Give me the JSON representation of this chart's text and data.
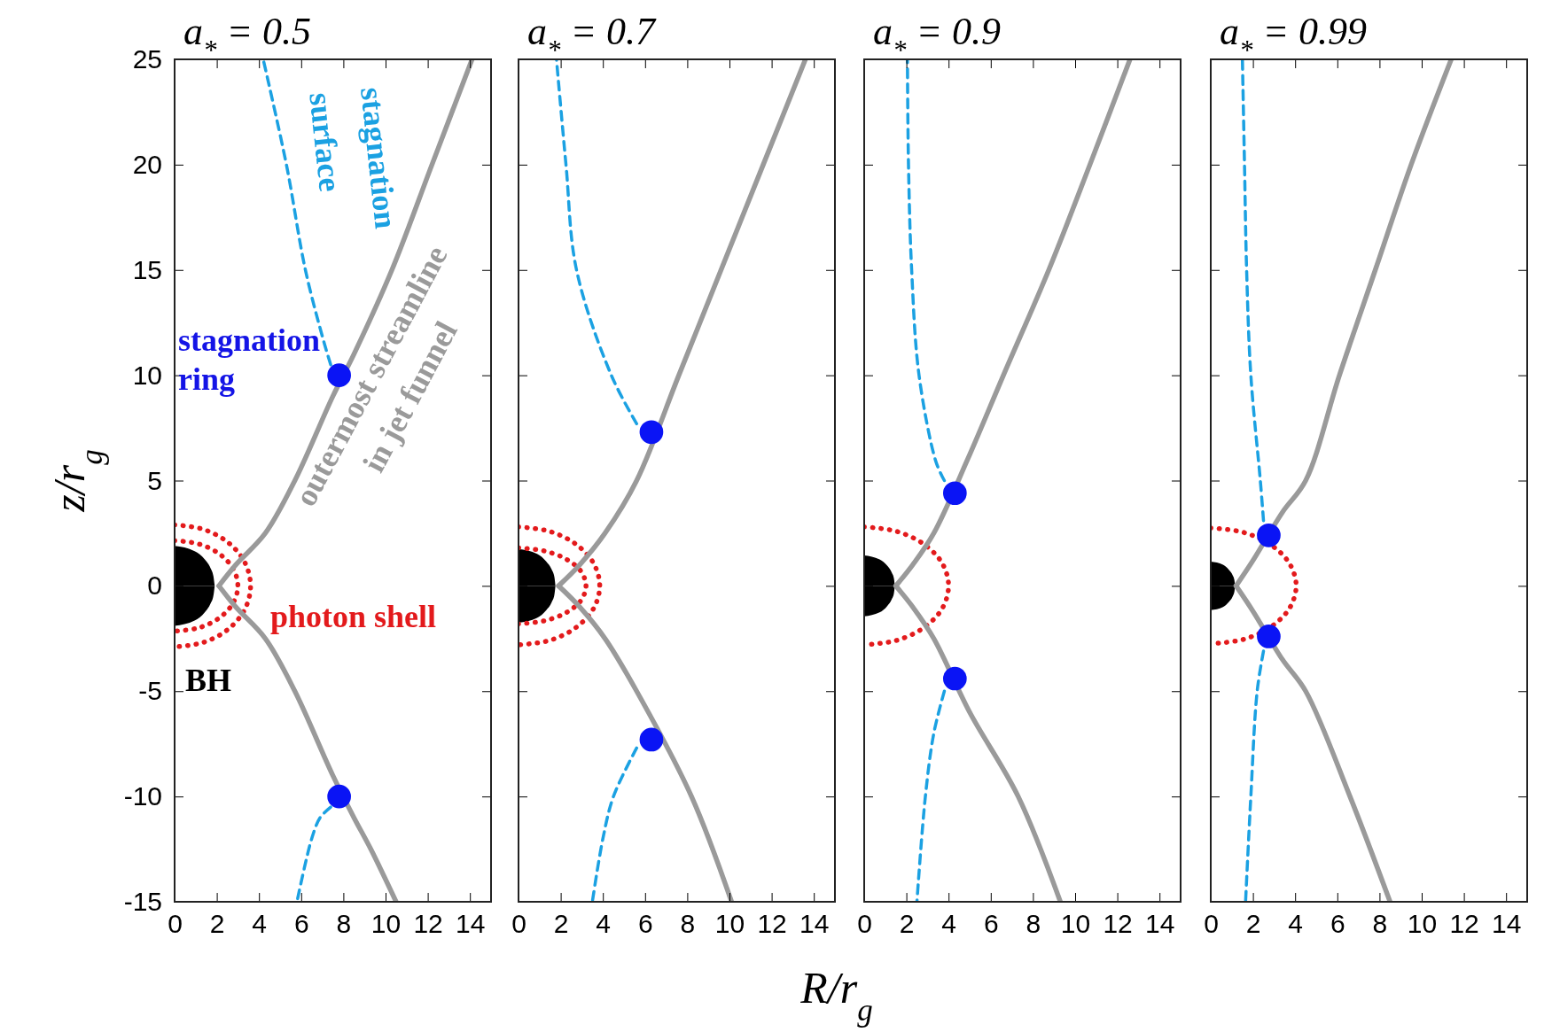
{
  "chart_data": [
    {
      "type": "line",
      "title": "a$_{*}$ = 0.5",
      "ylabel": "z/r$_{g}$",
      "xlim": [
        0,
        15
      ],
      "ylim": [
        -15,
        25
      ],
      "xticks": [
        0,
        2,
        4,
        6,
        8,
        10,
        12,
        14
      ],
      "yticks": [
        -15,
        -10,
        -5,
        0,
        5,
        10,
        15,
        20,
        25
      ],
      "annotations": [
        "stagnation surface",
        "stagnation ring",
        "outermost streamline in jet funnel",
        "photon shell",
        "BH"
      ],
      "series": [
        {
          "type": "area",
          "color": "#000000",
          "x": [
            0,
            0.95,
            1.43,
            1.71,
            1.84,
            1.9
          ],
          "values": [
            1.9,
            1.65,
            1.26,
            0.83,
            0.46,
            0
          ]
        },
        {
          "type": "area",
          "color": "#000000",
          "x": [
            0,
            0.95,
            1.43,
            1.71,
            1.84,
            1.9
          ],
          "values": [
            -1.9,
            -1.65,
            -1.26,
            -0.83,
            -0.46,
            0
          ]
        },
        {
          "type": "line",
          "color": "#e31a1c",
          "line_style": "dotted",
          "x": [
            0,
            1.38,
            2.55,
            3.33,
            3.6,
            3.33,
            2.55,
            1.38,
            0
          ],
          "values": [
            2.9,
            2.68,
            2.05,
            1.11,
            0,
            -1.11,
            -2.05,
            -2.68,
            -2.9
          ]
        },
        {
          "type": "line",
          "color": "#e31a1c",
          "line_style": "dotted",
          "x": [
            0,
            1.15,
            2.12,
            2.77,
            3.0,
            2.77,
            2.12,
            1.15,
            0
          ],
          "values": [
            2.15,
            1.99,
            1.52,
            0.82,
            0,
            -0.82,
            -1.52,
            -1.99,
            -2.15
          ]
        },
        {
          "type": "line",
          "color": "#9a9a9a",
          "line_style": "solid",
          "x": [
            2.1,
            2.9,
            4.3,
            5.7,
            7.5,
            8.5,
            10.3,
            12.2,
            14.1
          ],
          "values": [
            0,
            1,
            2.5,
            5,
            9,
            11,
            15,
            20,
            25
          ]
        },
        {
          "type": "line",
          "color": "#9a9a9a",
          "line_style": "solid",
          "x": [
            2.1,
            2.9,
            4.3,
            5.7,
            7.5,
            8.5,
            9.3,
            10.5
          ],
          "values": [
            0,
            -1,
            -2.5,
            -5,
            -9,
            -11,
            -12.5,
            -15
          ]
        },
        {
          "type": "line",
          "color": "#1ba1e2",
          "line_style": "dashed",
          "x": [
            7.4,
            7.1,
            6.2,
            5.3,
            4.2
          ],
          "values": [
            10.5,
            11.5,
            15,
            20,
            25
          ]
        },
        {
          "type": "line",
          "color": "#1ba1e2",
          "line_style": "dashed",
          "x": [
            7.4,
            6.9,
            6.5,
            5.8
          ],
          "values": [
            -10.5,
            -11,
            -12,
            -15
          ]
        },
        {
          "type": "scatter",
          "color": "#0a14f5",
          "marker": "circle",
          "x": [
            7.8,
            7.8
          ],
          "values": [
            10,
            -10
          ]
        }
      ]
    },
    {
      "type": "line",
      "title": "a$_{*}$ = 0.7",
      "xlabel": "R/r$_{g}$",
      "xlim": [
        0,
        15
      ],
      "ylim": [
        -15,
        25
      ],
      "xticks": [
        0,
        2,
        4,
        6,
        8,
        10,
        12,
        14
      ],
      "yticks": [
        -15,
        -10,
        -5,
        0,
        5,
        10,
        15,
        20,
        25
      ],
      "tick_labels": "x",
      "series": [
        {
          "type": "area",
          "color": "#000000",
          "x": [
            0,
            0.88,
            1.31,
            1.58,
            1.7,
            1.75
          ],
          "values": [
            1.75,
            1.52,
            1.16,
            0.76,
            0.43,
            0
          ]
        },
        {
          "type": "area",
          "color": "#000000",
          "x": [
            0,
            0.88,
            1.31,
            1.58,
            1.7,
            1.75
          ],
          "values": [
            -1.75,
            -1.52,
            -1.16,
            -0.76,
            -0.43,
            0
          ]
        },
        {
          "type": "line",
          "color": "#e31a1c",
          "line_style": "dotted",
          "x": [
            0,
            1.47,
            2.72,
            3.56,
            3.85,
            3.56,
            2.72,
            1.47,
            0
          ],
          "values": [
            2.8,
            2.59,
            1.98,
            1.07,
            0,
            -1.07,
            -1.98,
            -2.59,
            -2.8
          ]
        },
        {
          "type": "line",
          "color": "#e31a1c",
          "line_style": "dotted",
          "x": [
            0,
            1.22,
            2.26,
            2.96,
            3.2,
            2.96,
            2.26,
            1.22,
            0
          ],
          "values": [
            1.8,
            1.66,
            1.27,
            0.69,
            0,
            -0.69,
            -1.27,
            -1.66,
            -1.8
          ]
        },
        {
          "type": "line",
          "color": "#9a9a9a",
          "line_style": "solid",
          "x": [
            1.9,
            2.9,
            4.1,
            5.6,
            7.6,
            9.6,
            11.6,
            13.6
          ],
          "values": [
            0,
            1,
            2.5,
            5,
            10,
            15,
            20,
            25
          ]
        },
        {
          "type": "line",
          "color": "#9a9a9a",
          "line_style": "solid",
          "x": [
            1.9,
            2.9,
            4.1,
            5.6,
            8.2,
            10.1
          ],
          "values": [
            0,
            -1,
            -2.5,
            -5,
            -10,
            -15
          ]
        },
        {
          "type": "line",
          "color": "#1ba1e2",
          "line_style": "dashed",
          "x": [
            5.6,
            4.4,
            2.75,
            2.25,
            1.8
          ],
          "values": [
            7.7,
            10,
            15,
            20,
            25
          ]
        },
        {
          "type": "line",
          "color": "#1ba1e2",
          "line_style": "dashed",
          "x": [
            5.6,
            4.5,
            4.0,
            3.5
          ],
          "values": [
            -7.7,
            -10,
            -12,
            -15
          ]
        },
        {
          "type": "scatter",
          "color": "#0a14f5",
          "marker": "circle",
          "x": [
            6.3,
            6.3
          ],
          "values": [
            7.3,
            -7.3
          ]
        }
      ]
    },
    {
      "type": "line",
      "title": "a$_{*}$ = 0.9",
      "xlim": [
        0,
        15
      ],
      "ylim": [
        -15,
        25
      ],
      "xticks": [
        0,
        2,
        4,
        6,
        8,
        10,
        12,
        14
      ],
      "yticks": [
        -15,
        -10,
        -5,
        0,
        5,
        10,
        15,
        20,
        25
      ],
      "tick_labels": "x",
      "series": [
        {
          "type": "area",
          "color": "#000000",
          "x": [
            0,
            0.73,
            1.09,
            1.31,
            1.41,
            1.45
          ],
          "values": [
            1.45,
            1.26,
            0.96,
            0.63,
            0.35,
            0
          ]
        },
        {
          "type": "area",
          "color": "#000000",
          "x": [
            0,
            0.73,
            1.09,
            1.31,
            1.41,
            1.45
          ],
          "values": [
            -1.45,
            -1.26,
            -0.96,
            -0.63,
            -0.35,
            0
          ]
        },
        {
          "type": "line",
          "color": "#e31a1c",
          "line_style": "dotted",
          "x": [
            0,
            1.53,
            2.83,
            3.7,
            4.0,
            3.7,
            2.83,
            1.53,
            0
          ],
          "values": [
            2.8,
            2.59,
            1.98,
            1.07,
            0,
            -1.07,
            -1.98,
            -2.59,
            -2.8
          ]
        },
        {
          "type": "line",
          "color": "#9a9a9a",
          "line_style": "solid",
          "x": [
            1.5,
            2.3,
            3.3,
            4.9,
            6.6,
            8.75,
            10.7,
            12.6
          ],
          "values": [
            0,
            1,
            2.5,
            6,
            10,
            15,
            20,
            25
          ]
        },
        {
          "type": "line",
          "color": "#9a9a9a",
          "line_style": "solid",
          "x": [
            1.5,
            2.3,
            3.3,
            5.0,
            7.3,
            9.3
          ],
          "values": [
            0,
            -1,
            -2.5,
            -6,
            -10,
            -15
          ]
        },
        {
          "type": "line",
          "color": "#1ba1e2",
          "line_style": "dashed",
          "x": [
            3.8,
            3.4,
            2.6,
            2.25,
            2.1,
            2.05
          ],
          "values": [
            5.0,
            5.9,
            10,
            15,
            20,
            25
          ]
        },
        {
          "type": "line",
          "color": "#1ba1e2",
          "line_style": "dashed",
          "x": [
            3.8,
            3.3,
            2.9,
            2.5
          ],
          "values": [
            -5.0,
            -7,
            -10,
            -15
          ]
        },
        {
          "type": "scatter",
          "color": "#0a14f5",
          "marker": "circle",
          "x": [
            4.3,
            4.3
          ],
          "values": [
            4.4,
            -4.4
          ]
        }
      ]
    },
    {
      "type": "line",
      "title": "a$_{*}$ = 0.99",
      "xlim": [
        0,
        15
      ],
      "ylim": [
        -15,
        25
      ],
      "xticks": [
        0,
        2,
        4,
        6,
        8,
        10,
        12,
        14
      ],
      "yticks": [
        -15,
        -10,
        -5,
        0,
        5,
        10,
        15,
        20,
        25
      ],
      "tick_labels": "x",
      "series": [
        {
          "type": "area",
          "color": "#000000",
          "x": [
            0,
            0.58,
            0.86,
            1.04,
            1.12,
            1.15
          ],
          "values": [
            1.15,
            1.0,
            0.76,
            0.5,
            0.28,
            0
          ]
        },
        {
          "type": "area",
          "color": "#000000",
          "x": [
            0,
            0.58,
            0.86,
            1.04,
            1.12,
            1.15
          ],
          "values": [
            -1.15,
            -1.0,
            -0.76,
            -0.5,
            -0.28,
            0
          ]
        },
        {
          "type": "line",
          "color": "#e31a1c",
          "line_style": "dotted",
          "x": [
            0,
            1.55,
            2.86,
            3.74,
            4.05,
            3.74,
            2.86,
            1.55,
            0
          ],
          "values": [
            2.75,
            2.54,
            1.94,
            1.05,
            0,
            -1.05,
            -1.94,
            -2.54,
            -2.75
          ]
        },
        {
          "type": "line",
          "color": "#9a9a9a",
          "line_style": "solid",
          "x": [
            1.2,
            2.0,
            3.4,
            4.5,
            6.1,
            7.8,
            9.5,
            11.4
          ],
          "values": [
            0,
            1.2,
            3.5,
            5,
            10,
            15,
            20,
            25
          ]
        },
        {
          "type": "line",
          "color": "#9a9a9a",
          "line_style": "solid",
          "x": [
            1.2,
            2.0,
            3.4,
            4.5,
            6.6,
            8.5
          ],
          "values": [
            0,
            -1.2,
            -3.5,
            -5,
            -10,
            -15
          ]
        },
        {
          "type": "line",
          "color": "#1ba1e2",
          "line_style": "dashed",
          "x": [
            2.5,
            2.35,
            1.9,
            1.7,
            1.6,
            1.5
          ],
          "values": [
            3.1,
            5,
            10,
            15,
            20,
            25
          ]
        },
        {
          "type": "line",
          "color": "#1ba1e2",
          "line_style": "dashed",
          "x": [
            2.5,
            2.2,
            1.9,
            1.65
          ],
          "values": [
            -3.1,
            -5,
            -10,
            -15
          ]
        },
        {
          "type": "scatter",
          "color": "#0a14f5",
          "marker": "circle",
          "x": [
            2.75,
            2.75
          ],
          "values": [
            2.4,
            -2.4
          ]
        }
      ]
    }
  ]
}
